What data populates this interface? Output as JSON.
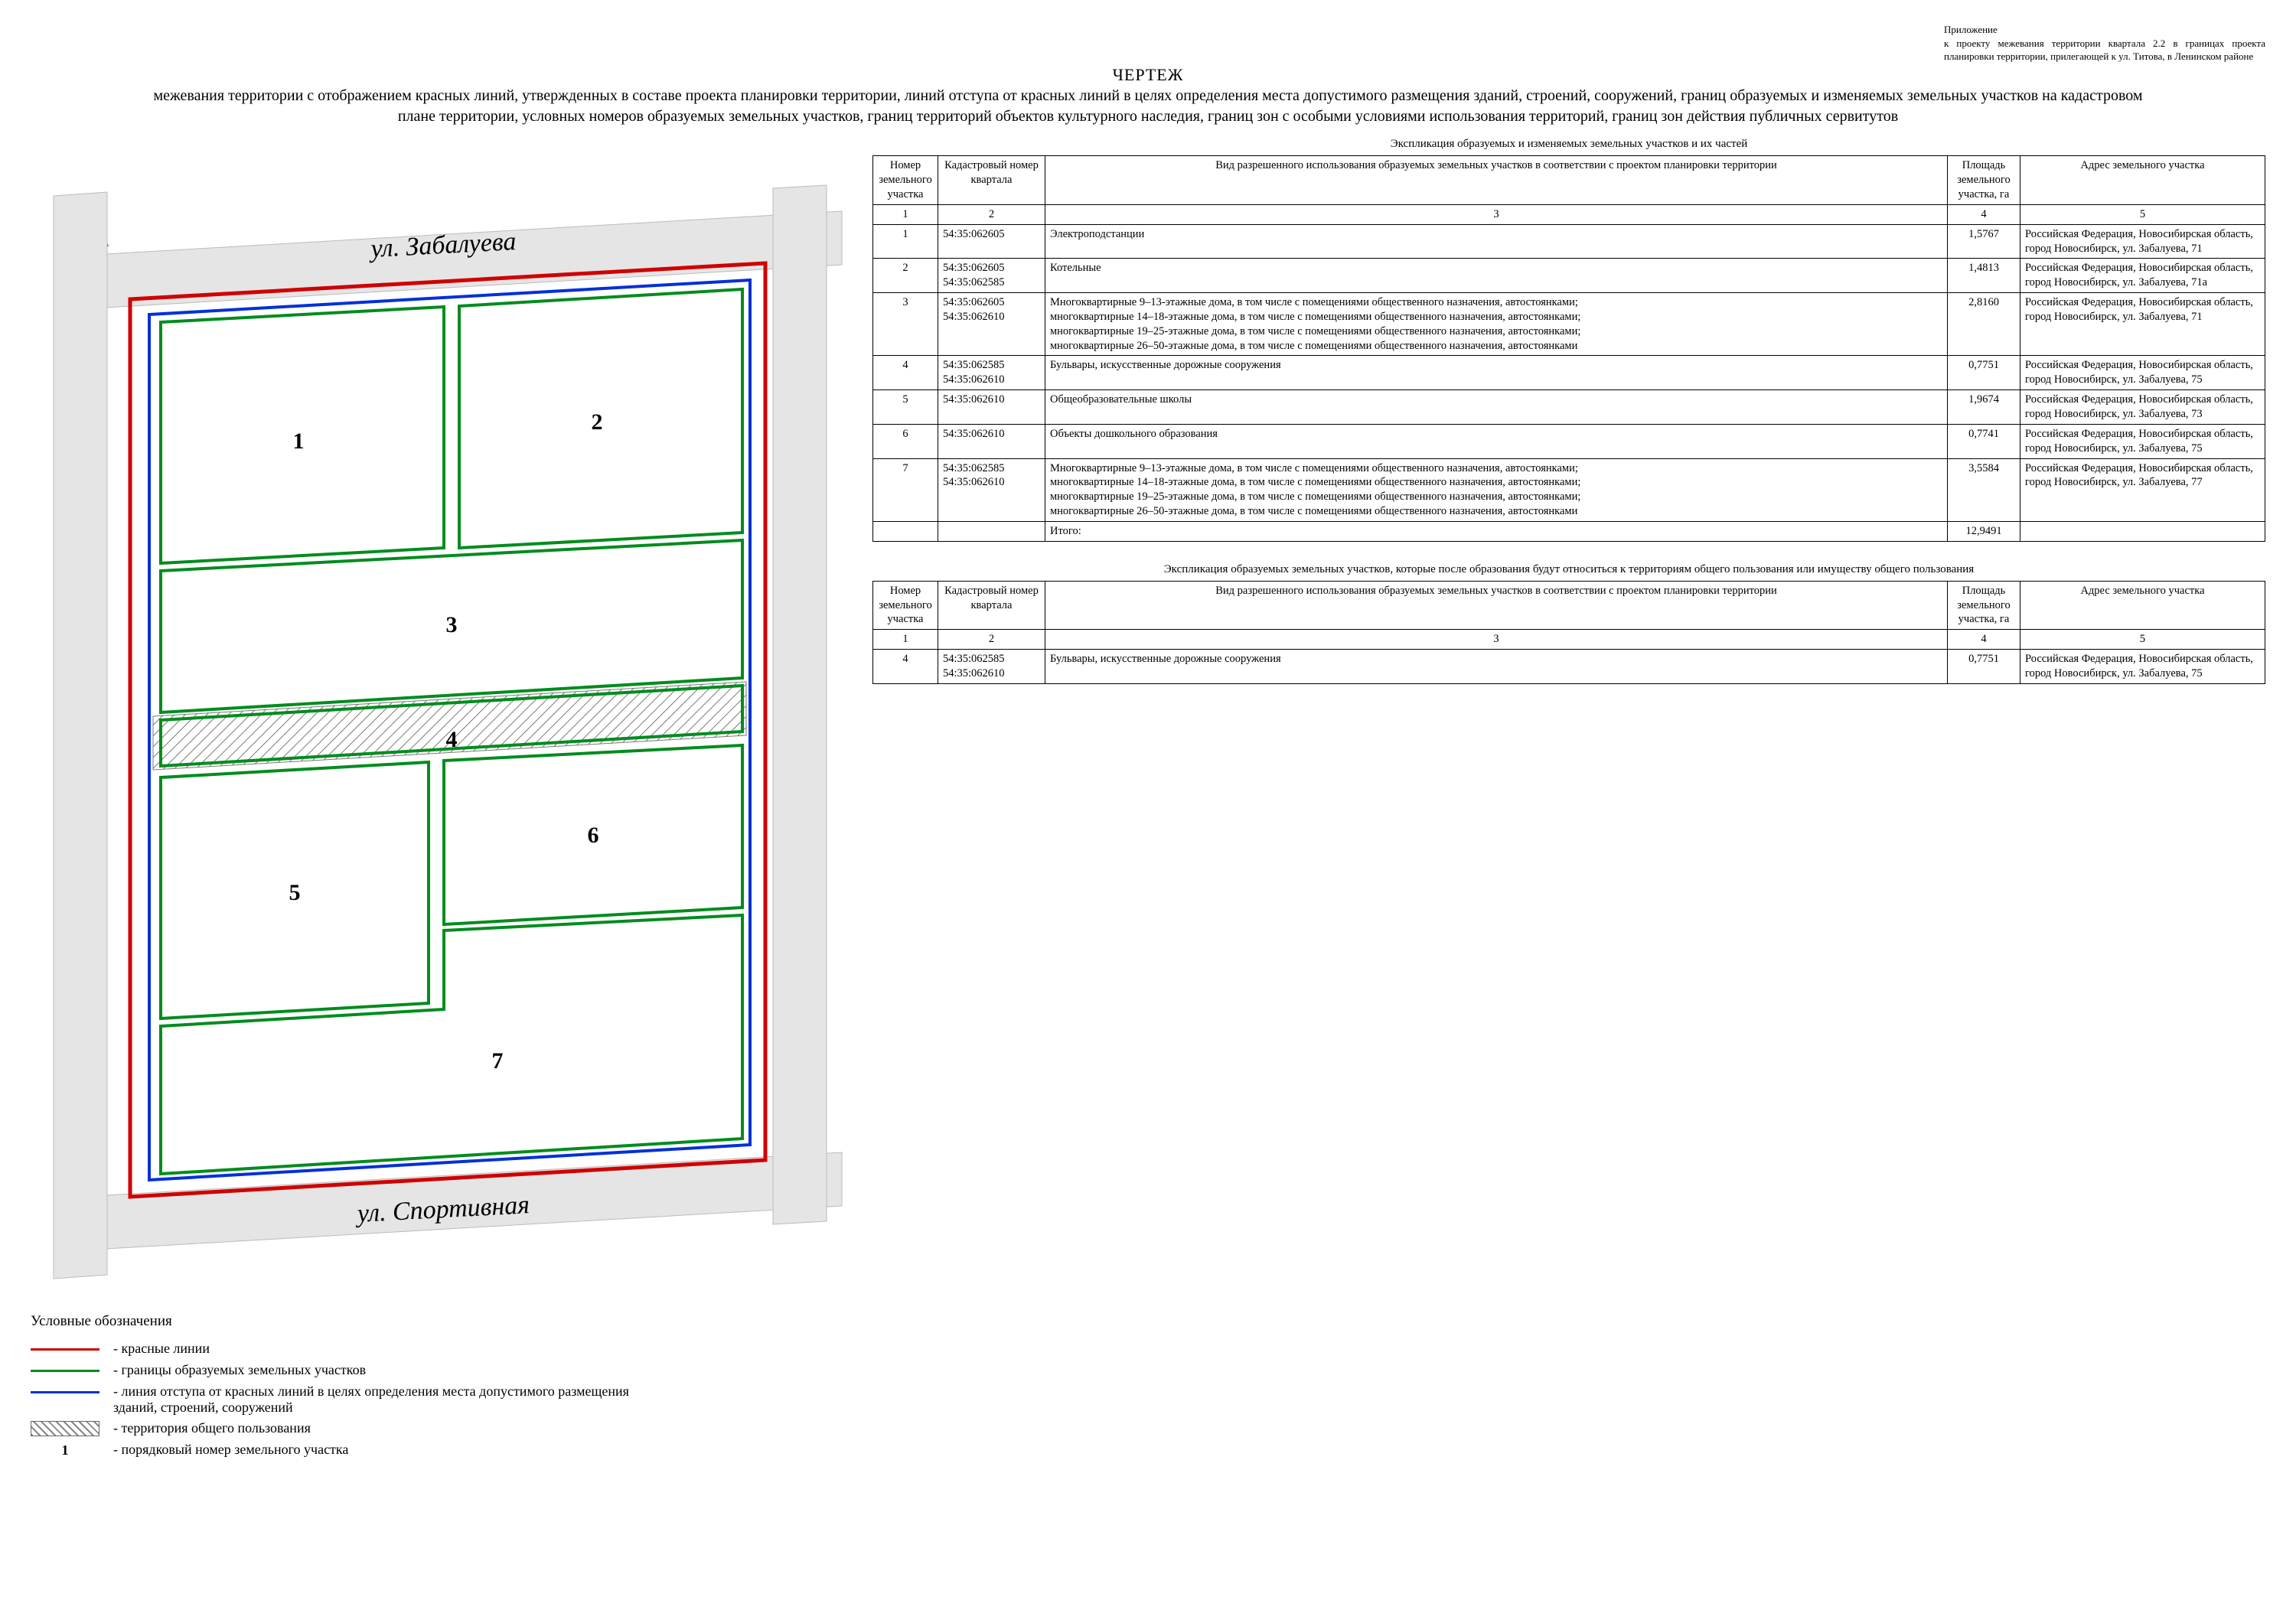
{
  "annex": {
    "l1": "Приложение",
    "l2": "к проекту межевания территории квартала 2.2 в границах проекта планировки территории, прилегающей к ул. Титова, в Ленинском районе"
  },
  "title": {
    "word": "ЧЕРТЕЖ",
    "lines": "межевания территории с отображением красных линий, утвержденных в составе проекта планировки территории, линий отступа от красных линий в целях определения места допустимого размещения зданий, строений, сооружений, границ образуемых и изменяемых земельных участков на кадастровом плане территории, условных номеров образуемых земельных участков, границ территорий объектов культурного наследия, границ зон с особыми условиями использования территорий, границ зон действия публичных сервитутов"
  },
  "compass_label": "С",
  "map": {
    "street_top": "ул. Забалуева",
    "street_bottom": "ул. Спортивная",
    "outer_red": "#d00000",
    "blue": "#0030d8",
    "green": "#008c1e",
    "road_fill": "#e5e5e5",
    "hatch": "#7a7a7a",
    "plot_labels": [
      "1",
      "2",
      "3",
      "4",
      "5",
      "6",
      "7"
    ]
  },
  "legend": {
    "title": "Условные обозначения",
    "items": [
      {
        "color": "#d00000",
        "text": "- красные линии"
      },
      {
        "color": "#008c1e",
        "text": "- границы образуемых земельных участков"
      },
      {
        "color": "#0030d8",
        "text": "- линия отступа от красных линий в целях определения места допустимого размещения зданий, строений, сооружений"
      },
      {
        "hatch": true,
        "text": "- территория общего пользования"
      },
      {
        "num": "1",
        "text": "- порядковый номер земельного участка"
      }
    ]
  },
  "table1": {
    "caption": "Экспликация образуемых и изменяемых земельных участков и их частей",
    "headers": [
      "Номер земельного участка",
      "Кадастровый номер квартала",
      "Вид разрешенного использования образуемых земельных участков в соответствии с проектом планировки территории",
      "Площадь земельного участка, га",
      "Адрес земельного участка"
    ],
    "numrow": [
      "1",
      "2",
      "3",
      "4",
      "5"
    ],
    "rows": [
      {
        "n": "1",
        "kad": "54:35:062605",
        "use": "Электроподстанции",
        "area": "1,5767",
        "addr": "Российская Федерация, Новосибирская область, город Новосибирск, ул. Забалуева, 71"
      },
      {
        "n": "2",
        "kad": "54:35:062605\n54:35:062585",
        "use": "Котельные",
        "area": "1,4813",
        "addr": "Российская Федерация, Новосибирская область, город Новосибирск, ул. Забалуева, 71а"
      },
      {
        "n": "3",
        "kad": "54:35:062605\n54:35:062610",
        "use": "Многоквартирные 9–13-этажные дома, в том числе с помещениями общественного назначения, автостоянками;\nмногоквартирные 14–18-этажные дома, в том числе с помещениями общественного назначения, автостоянками;\nмногоквартирные 19–25-этажные дома, в том числе с помещениями общественного назначения, автостоянками;\nмногоквартирные 26–50-этажные дома, в том числе с помещениями общественного назначения, автостоянками",
        "area": "2,8160",
        "addr": "Российская Федерация, Новосибирская область, город Новосибирск, ул. Забалуева, 71"
      },
      {
        "n": "4",
        "kad": "54:35:062585\n54:35:062610",
        "use": "Бульвары, искусственные дорожные сооружения",
        "area": "0,7751",
        "addr": "Российская Федерация, Новосибирская область, город Новосибирск, ул. Забалуева, 75"
      },
      {
        "n": "5",
        "kad": "54:35:062610",
        "use": "Общеобразовательные школы",
        "area": "1,9674",
        "addr": "Российская Федерация, Новосибирская область, город Новосибирск, ул. Забалуева, 73"
      },
      {
        "n": "6",
        "kad": "54:35:062610",
        "use": "Объекты дошкольного образования",
        "area": "0,7741",
        "addr": "Российская Федерация, Новосибирская область, город Новосибирск, ул. Забалуева, 75"
      },
      {
        "n": "7",
        "kad": "54:35:062585\n54:35:062610",
        "use": "Многоквартирные 9–13-этажные дома, в том числе с помещениями общественного назначения, автостоянками;\nмногоквартирные 14–18-этажные дома, в том числе с помещениями общественного назначения, автостоянками;\nмногоквартирные 19–25-этажные дома, в том числе с помещениями общественного назначения, автостоянками;\nмногоквартирные 26–50-этажные дома, в том числе с помещениями общественного назначения, автостоянками",
        "area": "3,5584",
        "addr": "Российская Федерация, Новосибирская область, город Новосибирск, ул. Забалуева, 77"
      }
    ],
    "total_label": "Итого:",
    "total_area": "12,9491"
  },
  "table2": {
    "caption": "Экспликация образуемых земельных участков, которые после образования будут относиться к территориям общего пользования или имуществу общего пользования",
    "rows": [
      {
        "n": "4",
        "kad": "54:35:062585\n54:35:062610",
        "use": "Бульвары, искусственные дорожные сооружения",
        "area": "0,7751",
        "addr": "Российская Федерация, Новосибирская область, город Новосибирск, ул. Забалуева, 75"
      }
    ]
  },
  "colors": {
    "red": "#d00000",
    "blue": "#0030d8",
    "green": "#008c1e"
  }
}
